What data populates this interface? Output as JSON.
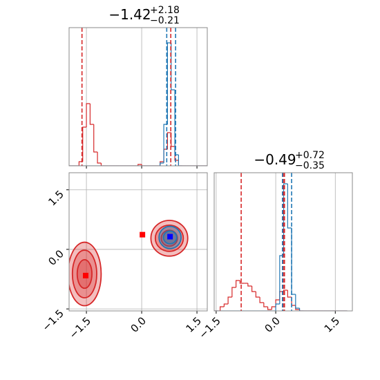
{
  "chart_data": {
    "type": "corner",
    "grid": true,
    "params": [
      {
        "title": "−1.42",
        "title_sup": "+2.18",
        "title_sub": "−0.21",
        "lim": [
          -1.97,
          1.78
        ],
        "ticks": [
          {
            "value": -1.5,
            "label": "−1.5"
          },
          {
            "value": 0,
            "label": "0.0"
          },
          1.5
        ],
        "hist": {
          "ylim": [
            0,
            100
          ],
          "bins": [
            -2.0,
            -1.9,
            -1.8,
            -1.7,
            -1.6,
            -1.5,
            -1.4,
            -1.3,
            -1.2,
            -1.1,
            -1.0,
            -0.9,
            -0.8,
            -0.7,
            -0.6,
            -0.5,
            -0.4,
            -0.3,
            -0.2,
            -0.1,
            0.0,
            0.1,
            0.2,
            0.3,
            0.4,
            0.5,
            0.6,
            0.7,
            0.8,
            0.9,
            1.0,
            1.1,
            1.2,
            1.3,
            1.4,
            1.5,
            1.6,
            1.7,
            1.8
          ],
          "series": [
            {
              "color": "#d62728",
              "counts": [
                0,
                0,
                0,
                3,
                28,
                45,
                30,
                10,
                2,
                0,
                0,
                0,
                0,
                0,
                0,
                0,
                0,
                0,
                0,
                1,
                0,
                0,
                0,
                0,
                0,
                3,
                12,
                24,
                14,
                4,
                0,
                0,
                0,
                0,
                0,
                0,
                0,
                0
              ]
            },
            {
              "color": "#1f77b4",
              "counts": [
                0,
                0,
                0,
                0,
                0,
                0,
                0,
                0,
                0,
                0,
                0,
                0,
                0,
                0,
                0,
                0,
                0,
                0,
                0,
                0,
                0,
                0,
                0,
                0,
                0,
                2,
                30,
                89,
                55,
                8,
                0,
                0,
                0,
                0,
                0,
                0,
                0,
                0
              ]
            }
          ]
        },
        "quantiles": [
          {
            "color": "#d62728",
            "values": [
              -1.62,
              0.79
            ]
          },
          {
            "color": "#1f77b4",
            "values": [
              0.68,
              0.92
            ]
          }
        ]
      },
      {
        "title": "−0.49",
        "title_sup": "+0.72",
        "title_sub": "−0.35",
        "lim": [
          -1.55,
          1.93
        ],
        "ticks": [
          {
            "value": -1.5,
            "label": "−1.5"
          },
          {
            "value": 0,
            "label": "0.0"
          },
          1.5
        ],
        "hist": {
          "ylim": [
            0,
            100
          ],
          "bins": [
            -1.6,
            -1.5,
            -1.4,
            -1.3,
            -1.2,
            -1.1,
            -1.0,
            -0.9,
            -0.8,
            -0.7,
            -0.6,
            -0.5,
            -0.4,
            -0.3,
            -0.2,
            -0.1,
            0.0,
            0.1,
            0.2,
            0.3,
            0.4,
            0.5,
            0.6,
            0.7,
            0.8,
            0.9,
            1.0,
            1.1,
            1.2,
            1.3,
            1.4,
            1.5,
            1.6,
            1.7,
            1.8
          ],
          "series": [
            {
              "color": "#d62728",
              "counts": [
                0,
                0,
                3,
                5,
                10,
                17,
                22,
                20,
                20,
                18,
                14,
                10,
                6,
                3,
                1,
                3,
                8,
                14,
                15,
                10,
                4,
                1,
                0,
                0,
                0,
                0,
                0,
                0,
                0,
                0,
                0,
                0,
                0,
                0
              ]
            },
            {
              "color": "#1f77b4",
              "counts": [
                0,
                0,
                0,
                0,
                0,
                0,
                0,
                0,
                0,
                0,
                0,
                0,
                0,
                0,
                0,
                0,
                5,
                40,
                92,
                60,
                12,
                2,
                0,
                0,
                0,
                0,
                0,
                0,
                0,
                0,
                0,
                0,
                0,
                0
              ]
            }
          ]
        },
        "quantiles": [
          {
            "color": "#d62728",
            "values": [
              -0.87,
              0.19,
              0.22
            ]
          },
          {
            "color": "#1f77b4",
            "values": [
              0.17,
              0.4
            ]
          }
        ]
      }
    ],
    "contours": [
      {
        "color": "#d62728",
        "center": [
          -1.55,
          -0.62
        ],
        "radii": [
          [
            0.45,
            0.8
          ],
          [
            0.33,
            0.6
          ],
          [
            0.2,
            0.36
          ]
        ]
      },
      {
        "color": "#d62728",
        "center": [
          0.75,
          0.28
        ],
        "radii": [
          [
            0.5,
            0.45
          ],
          [
            0.38,
            0.33
          ],
          [
            0.22,
            0.2
          ]
        ]
      },
      {
        "color": "#1f77b4",
        "center": [
          0.77,
          0.3
        ],
        "radii": [
          [
            0.3,
            0.28
          ],
          [
            0.18,
            0.16
          ]
        ]
      }
    ],
    "markers": [
      {
        "color": "#ff0000",
        "x": -1.52,
        "y": -0.66
      },
      {
        "color": "#ff0000",
        "x": 0.02,
        "y": 0.37
      },
      {
        "color": "#0000ff",
        "x": 0.77,
        "y": 0.32
      }
    ]
  }
}
